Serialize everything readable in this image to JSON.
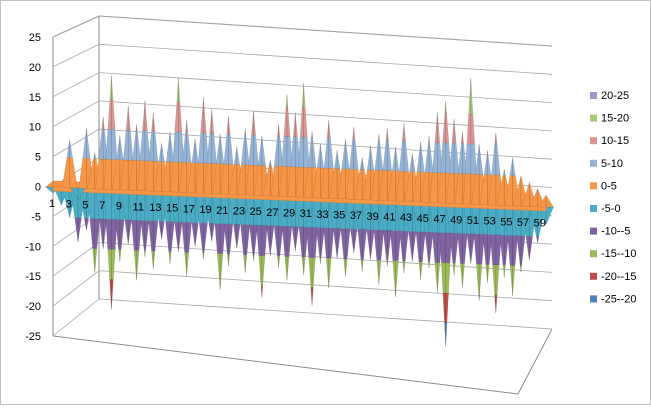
{
  "chart_data": {
    "type": "surface",
    "title": "",
    "xlabel": "",
    "ylabel": "",
    "zlim": [
      -25,
      25
    ],
    "z_ticks": [
      "25",
      "20",
      "15",
      "10",
      "5",
      "0",
      "-5",
      "-10",
      "-15",
      "-20",
      "-25"
    ],
    "category_labels": [
      "1",
      "3",
      "5",
      "7",
      "9",
      "11",
      "13",
      "15",
      "17",
      "19",
      "21",
      "23",
      "25",
      "27",
      "29",
      "31",
      "33",
      "35",
      "37",
      "39",
      "41",
      "43",
      "45",
      "47",
      "49",
      "51",
      "53",
      "55",
      "57",
      "59"
    ],
    "grid": true,
    "legend_position": "right",
    "legend": [
      {
        "label": "20-25",
        "color": "#9999cc"
      },
      {
        "label": "15-20",
        "color": "#a8c87a"
      },
      {
        "label": "10-15",
        "color": "#d99694"
      },
      {
        "label": "5-10",
        "color": "#95b3d7"
      },
      {
        "label": "0-5",
        "color": "#f79646"
      },
      {
        "label": "-5-0",
        "color": "#4bacc6"
      },
      {
        "label": "-10--5",
        "color": "#8064a2"
      },
      {
        "label": "-15--10",
        "color": "#9bbb59"
      },
      {
        "label": "-20--15",
        "color": "#c0504d"
      },
      {
        "label": "-25--20",
        "color": "#4f81bd"
      }
    ],
    "peaks": [
      {
        "x": 1,
        "z": 1
      },
      {
        "x": 2,
        "z": 0
      },
      {
        "x": 3,
        "z": 8
      },
      {
        "x": 4,
        "z": -2
      },
      {
        "x": 5,
        "z": 10
      },
      {
        "x": 6,
        "z": 6
      },
      {
        "x": 7,
        "z": 12
      },
      {
        "x": 8,
        "z": 19
      },
      {
        "x": 9,
        "z": 9
      },
      {
        "x": 10,
        "z": 14
      },
      {
        "x": 11,
        "z": 11
      },
      {
        "x": 12,
        "z": 15
      },
      {
        "x": 13,
        "z": 13
      },
      {
        "x": 14,
        "z": 8
      },
      {
        "x": 15,
        "z": 10
      },
      {
        "x": 16,
        "z": 19
      },
      {
        "x": 17,
        "z": 12
      },
      {
        "x": 18,
        "z": 9
      },
      {
        "x": 19,
        "z": 16
      },
      {
        "x": 20,
        "z": 14
      },
      {
        "x": 21,
        "z": 10
      },
      {
        "x": 22,
        "z": 13
      },
      {
        "x": 23,
        "z": 8
      },
      {
        "x": 24,
        "z": 11
      },
      {
        "x": 25,
        "z": 14
      },
      {
        "x": 26,
        "z": 10
      },
      {
        "x": 27,
        "z": 6
      },
      {
        "x": 28,
        "z": 12
      },
      {
        "x": 29,
        "z": 17
      },
      {
        "x": 30,
        "z": 14
      },
      {
        "x": 31,
        "z": 19
      },
      {
        "x": 32,
        "z": 11
      },
      {
        "x": 33,
        "z": 9
      },
      {
        "x": 34,
        "z": 13
      },
      {
        "x": 35,
        "z": 8
      },
      {
        "x": 36,
        "z": 10
      },
      {
        "x": 37,
        "z": 12
      },
      {
        "x": 38,
        "z": 7
      },
      {
        "x": 39,
        "z": 9
      },
      {
        "x": 40,
        "z": 11
      },
      {
        "x": 41,
        "z": 12
      },
      {
        "x": 42,
        "z": 9
      },
      {
        "x": 43,
        "z": 13
      },
      {
        "x": 44,
        "z": 8
      },
      {
        "x": 45,
        "z": 10
      },
      {
        "x": 46,
        "z": 11
      },
      {
        "x": 47,
        "z": 15
      },
      {
        "x": 48,
        "z": 17
      },
      {
        "x": 49,
        "z": 14
      },
      {
        "x": 50,
        "z": 12
      },
      {
        "x": 51,
        "z": 21
      },
      {
        "x": 52,
        "z": 10
      },
      {
        "x": 53,
        "z": 9
      },
      {
        "x": 54,
        "z": 12
      },
      {
        "x": 55,
        "z": 6
      },
      {
        "x": 56,
        "z": 8
      },
      {
        "x": 57,
        "z": 5
      },
      {
        "x": 58,
        "z": 4
      },
      {
        "x": 59,
        "z": 3
      },
      {
        "x": 60,
        "z": 2
      }
    ],
    "troughs": [
      {
        "x": 1,
        "z": -1
      },
      {
        "x": 2,
        "z": -3
      },
      {
        "x": 3,
        "z": -5
      },
      {
        "x": 4,
        "z": -9
      },
      {
        "x": 5,
        "z": -7
      },
      {
        "x": 6,
        "z": -14
      },
      {
        "x": 7,
        "z": -10
      },
      {
        "x": 8,
        "z": -20
      },
      {
        "x": 9,
        "z": -12
      },
      {
        "x": 10,
        "z": -9
      },
      {
        "x": 11,
        "z": -15
      },
      {
        "x": 12,
        "z": -11
      },
      {
        "x": 13,
        "z": -13
      },
      {
        "x": 14,
        "z": -8
      },
      {
        "x": 15,
        "z": -12
      },
      {
        "x": 16,
        "z": -10
      },
      {
        "x": 17,
        "z": -14
      },
      {
        "x": 18,
        "z": -9
      },
      {
        "x": 19,
        "z": -11
      },
      {
        "x": 20,
        "z": -8
      },
      {
        "x": 21,
        "z": -16
      },
      {
        "x": 22,
        "z": -12
      },
      {
        "x": 23,
        "z": -9
      },
      {
        "x": 24,
        "z": -13
      },
      {
        "x": 25,
        "z": -11
      },
      {
        "x": 26,
        "z": -17
      },
      {
        "x": 27,
        "z": -10
      },
      {
        "x": 28,
        "z": -12
      },
      {
        "x": 29,
        "z": -14
      },
      {
        "x": 30,
        "z": -9
      },
      {
        "x": 31,
        "z": -13
      },
      {
        "x": 32,
        "z": -18
      },
      {
        "x": 33,
        "z": -11
      },
      {
        "x": 34,
        "z": -15
      },
      {
        "x": 35,
        "z": -10
      },
      {
        "x": 36,
        "z": -13
      },
      {
        "x": 37,
        "z": -9
      },
      {
        "x": 38,
        "z": -12
      },
      {
        "x": 39,
        "z": -10
      },
      {
        "x": 40,
        "z": -14
      },
      {
        "x": 41,
        "z": -11
      },
      {
        "x": 42,
        "z": -16
      },
      {
        "x": 43,
        "z": -12
      },
      {
        "x": 44,
        "z": -10
      },
      {
        "x": 45,
        "z": -13
      },
      {
        "x": 46,
        "z": -11
      },
      {
        "x": 47,
        "z": -15
      },
      {
        "x": 48,
        "z": -24
      },
      {
        "x": 49,
        "z": -12
      },
      {
        "x": 50,
        "z": -14
      },
      {
        "x": 51,
        "z": -10
      },
      {
        "x": 52,
        "z": -16
      },
      {
        "x": 53,
        "z": -13
      },
      {
        "x": 54,
        "z": -18
      },
      {
        "x": 55,
        "z": -12
      },
      {
        "x": 56,
        "z": -15
      },
      {
        "x": 57,
        "z": -11
      },
      {
        "x": 58,
        "z": -9
      },
      {
        "x": 59,
        "z": -6
      },
      {
        "x": 60,
        "z": -3
      }
    ]
  }
}
